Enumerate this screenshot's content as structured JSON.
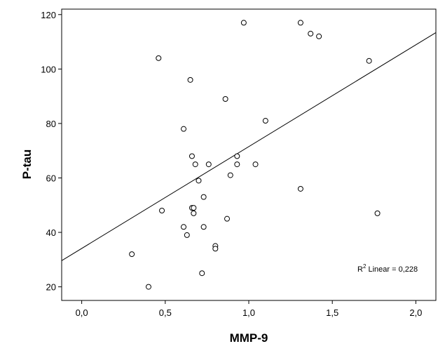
{
  "chart_data": {
    "type": "scatter",
    "xlabel": "MMP-9",
    "ylabel": "P-tau",
    "xlim": [
      -0.12,
      2.12
    ],
    "ylim": [
      15,
      122
    ],
    "x_ticks": [
      {
        "value": 0.0,
        "label": "0,0"
      },
      {
        "value": 0.5,
        "label": "0,5"
      },
      {
        "value": 1.0,
        "label": "1,0"
      },
      {
        "value": 1.5,
        "label": "1,5"
      },
      {
        "value": 2.0,
        "label": "2,0"
      }
    ],
    "y_ticks": [
      {
        "value": 20,
        "label": "20"
      },
      {
        "value": 40,
        "label": "40"
      },
      {
        "value": 60,
        "label": "60"
      },
      {
        "value": 80,
        "label": "80"
      },
      {
        "value": 100,
        "label": "100"
      },
      {
        "value": 120,
        "label": "120"
      }
    ],
    "points": [
      {
        "x": 0.3,
        "y": 32
      },
      {
        "x": 0.4,
        "y": 20
      },
      {
        "x": 0.46,
        "y": 104
      },
      {
        "x": 0.48,
        "y": 48
      },
      {
        "x": 0.61,
        "y": 78
      },
      {
        "x": 0.61,
        "y": 42
      },
      {
        "x": 0.63,
        "y": 39
      },
      {
        "x": 0.65,
        "y": 96
      },
      {
        "x": 0.66,
        "y": 68
      },
      {
        "x": 0.66,
        "y": 49
      },
      {
        "x": 0.67,
        "y": 49
      },
      {
        "x": 0.67,
        "y": 47
      },
      {
        "x": 0.68,
        "y": 65
      },
      {
        "x": 0.7,
        "y": 59
      },
      {
        "x": 0.72,
        "y": 25
      },
      {
        "x": 0.73,
        "y": 53
      },
      {
        "x": 0.73,
        "y": 42
      },
      {
        "x": 0.76,
        "y": 65
      },
      {
        "x": 0.8,
        "y": 35
      },
      {
        "x": 0.8,
        "y": 34
      },
      {
        "x": 0.86,
        "y": 89
      },
      {
        "x": 0.87,
        "y": 45
      },
      {
        "x": 0.89,
        "y": 61
      },
      {
        "x": 0.93,
        "y": 68
      },
      {
        "x": 0.93,
        "y": 65
      },
      {
        "x": 0.97,
        "y": 117
      },
      {
        "x": 1.04,
        "y": 65
      },
      {
        "x": 1.1,
        "y": 81
      },
      {
        "x": 1.31,
        "y": 117
      },
      {
        "x": 1.31,
        "y": 56
      },
      {
        "x": 1.37,
        "y": 113
      },
      {
        "x": 1.42,
        "y": 112
      },
      {
        "x": 1.72,
        "y": 103
      },
      {
        "x": 1.77,
        "y": 47
      }
    ],
    "fit_line": {
      "type": "linear",
      "intercept": 34.1,
      "slope": 37.4
    },
    "annotation": {
      "prefix": "R",
      "superscript": "2",
      "text": " Linear = 0,228"
    },
    "grid": false,
    "legend": "none"
  }
}
